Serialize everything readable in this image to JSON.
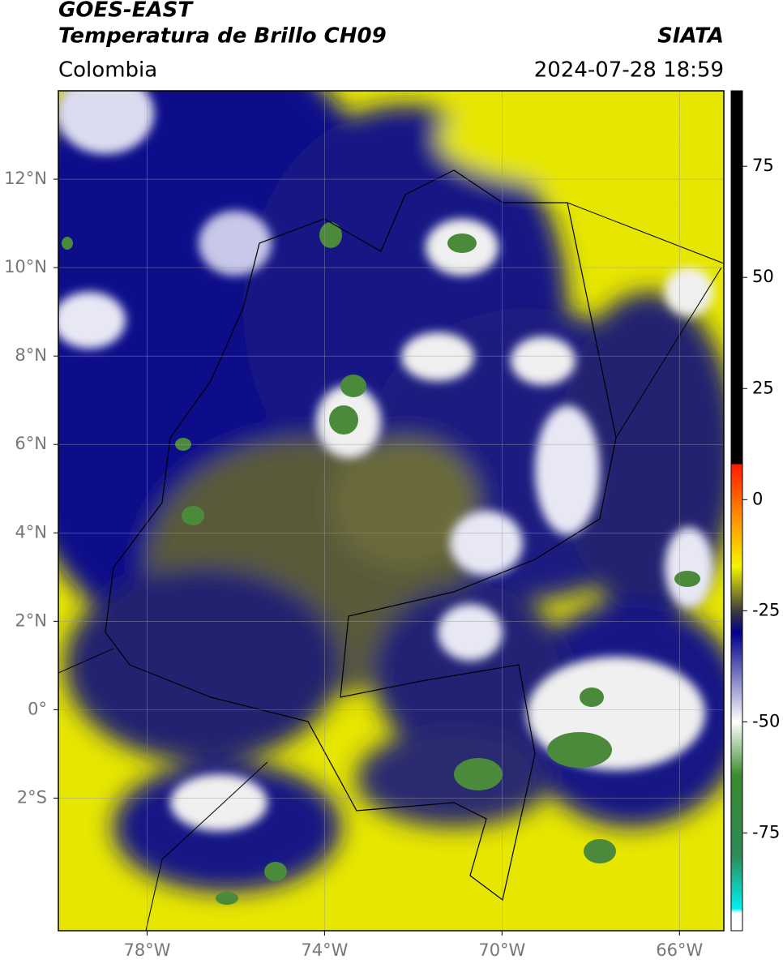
{
  "header": {
    "title": "GOES-EAST",
    "subtitle": "Temperatura de Brillo CH09",
    "source": "SIATA",
    "region": "Colombia",
    "datetime": "2024-07-28 18:59"
  },
  "map": {
    "xlim": [
      -80,
      -65
    ],
    "ylim": [
      -5,
      14
    ],
    "grid": true,
    "xticks": [
      {
        "value": -78,
        "label": "78°W"
      },
      {
        "value": -74,
        "label": "74°W"
      },
      {
        "value": -70,
        "label": "70°W"
      },
      {
        "value": -66,
        "label": "66°W"
      }
    ],
    "yticks": [
      {
        "value": 12,
        "label": "12°N"
      },
      {
        "value": 10,
        "label": "10°N"
      },
      {
        "value": 8,
        "label": "8°N"
      },
      {
        "value": 6,
        "label": "6°N"
      },
      {
        "value": 4,
        "label": "4°N"
      },
      {
        "value": 2,
        "label": "2°N"
      },
      {
        "value": 0,
        "label": "0°"
      },
      {
        "value": -2,
        "label": "2°S"
      }
    ]
  },
  "colorbar": {
    "lim": [
      -97,
      92
    ],
    "ticks": [
      75,
      50,
      25,
      0,
      -25,
      -50,
      -75
    ],
    "stops": [
      {
        "value": 92,
        "color": "#000000"
      },
      {
        "value": 8,
        "color": "#000000"
      },
      {
        "value": 8,
        "color": "#ff1a00"
      },
      {
        "value": -5,
        "color": "#ff9900"
      },
      {
        "value": -15,
        "color": "#f5f500"
      },
      {
        "value": -25,
        "color": "#3c3c3c"
      },
      {
        "value": -30,
        "color": "#00008b"
      },
      {
        "value": -50,
        "color": "#ffffff"
      },
      {
        "value": -62,
        "color": "#3d8b2e"
      },
      {
        "value": -80,
        "color": "#2e8b57"
      },
      {
        "value": -92,
        "color": "#00f0f0"
      },
      {
        "value": -93,
        "color": "#ffffff"
      },
      {
        "value": -97,
        "color": "#ffffff"
      }
    ]
  }
}
